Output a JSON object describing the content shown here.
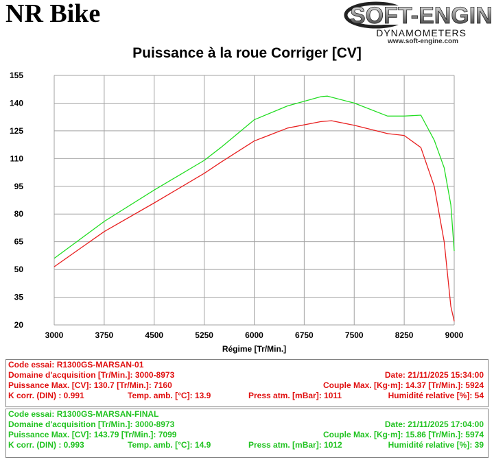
{
  "header": {
    "brand": "NR Bike",
    "logo_main": "SOFT-ENGINE",
    "logo_sub": "DYNAMOMETERS",
    "logo_url": "www.soft-engine.com"
  },
  "chart_data": {
    "type": "line",
    "title": "Puissance à la roue Corriger [CV]",
    "xlabel": "Régime [Tr/Min.]",
    "ylabel": "",
    "xlim": [
      3000,
      9000
    ],
    "ylim": [
      20,
      155
    ],
    "grid": true,
    "x_ticks": [
      "3000",
      "3750",
      "4500",
      "5250",
      "6000",
      "6750",
      "7500",
      "8250",
      "9000"
    ],
    "y_ticks": [
      "20",
      "35",
      "50",
      "65",
      "80",
      "95",
      "110",
      "125",
      "140",
      "155"
    ],
    "colors": {
      "red": "#e82020",
      "green": "#22dd22",
      "grid": "#a0a0a0"
    },
    "series": [
      {
        "color": "#e82020",
        "x": [
          3000,
          3750,
          4500,
          5250,
          5500,
          6000,
          6500,
          7000,
          7160,
          7500,
          8000,
          8250,
          8500,
          8700,
          8850,
          8950,
          9000
        ],
        "y": [
          51.5,
          70.5,
          86,
          102,
          108,
          119.5,
          126.5,
          130,
          130.5,
          128,
          123.5,
          122.5,
          116,
          95,
          65,
          30,
          22
        ]
      },
      {
        "color": "#22dd22",
        "x": [
          3000,
          3750,
          4500,
          5250,
          5500,
          6000,
          6500,
          7000,
          7099,
          7500,
          8000,
          8250,
          8500,
          8700,
          8850,
          8950,
          9000
        ],
        "y": [
          56,
          76,
          93,
          109,
          116,
          131,
          138.5,
          143.5,
          143.8,
          140,
          133,
          133,
          133.5,
          120,
          105,
          85,
          60
        ]
      }
    ]
  },
  "info_red": {
    "r1c1": "Code essai:  R1300GS-MARSAN-01",
    "r2c1": "Domaine d'acquisition [Tr/Min.]: 3000-8973",
    "r2c2": "Date: 21/11/2025   15:34:00",
    "r3c1": "Puissance Max. [CV]: 130.7   [Tr/Min.]: 7160",
    "r3c2": "Couple Max. [Kg·m]: 14.37   [Tr/Min.]: 5924",
    "r4c1": "K corr. (DIN) : 0.991",
    "r4c2": "Temp. amb. [°C]: 13.9",
    "r4c3": "Press atm. [mBar]: 1011",
    "r4c4": "Humidité relative [%]: 54"
  },
  "info_green": {
    "r1c1": "Code essai:  R1300GS-MARSAN-FINAL",
    "r2c1": "Domaine d'acquisition [Tr/Min.]: 3000-8973",
    "r2c2": "Date: 21/11/2025   17:04:00",
    "r3c1": "Puissance Max. [CV]: 143.79   [Tr/Min.]: 7099",
    "r3c2": "Couple Max. [Kg·m]: 15.86   [Tr/Min.]: 5974",
    "r4c1": "K corr. (DIN) : 0.993",
    "r4c2": "Temp. amb. [°C]: 14.9",
    "r4c3": "Press atm. [mBar]: 1012",
    "r4c4": "Humidité relative [%]: 39"
  }
}
